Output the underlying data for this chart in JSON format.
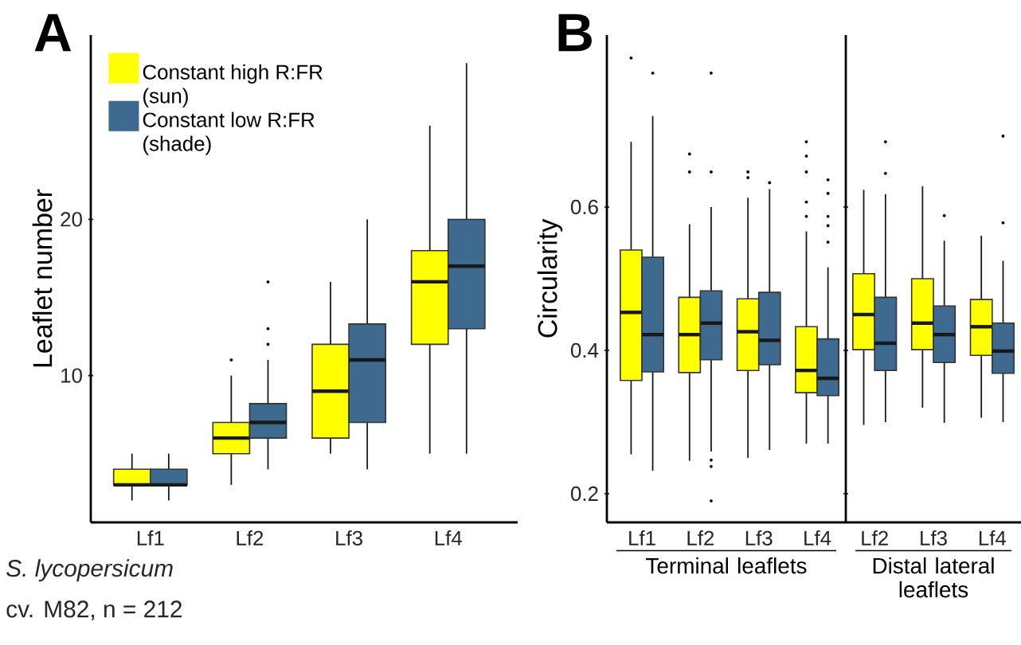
{
  "chart_data": [
    {
      "type": "box",
      "title": "A",
      "ylabel": "Leaflet number",
      "categories": [
        "Lf1",
        "Lf2",
        "Lf3",
        "Lf4"
      ],
      "ylim": [
        0.6,
        31.8
      ],
      "yticks": [
        10,
        20
      ],
      "legend": "top left",
      "annotations": [
        "S. lycopersicum",
        "cv. M82, n = 212"
      ],
      "series": [
        {
          "name": "Constant high R:FR (sun)",
          "color": "#ffff00",
          "boxes": [
            {
              "low": 2,
              "q1": 3,
              "median": 3,
              "q3": 4,
              "high": 5
            },
            {
              "low": 3,
              "q1": 5,
              "median": 6,
              "q3": 7,
              "high": 10,
              "outliers": [
                11
              ]
            },
            {
              "low": 5,
              "q1": 6,
              "median": 9,
              "q3": 12,
              "high": 16
            },
            {
              "low": 5,
              "q1": 12,
              "median": 16,
              "q3": 18,
              "high": 26
            }
          ]
        },
        {
          "name": "Constant low R:FR (shade)",
          "color": "#3d6a8e",
          "boxes": [
            {
              "low": 2,
              "q1": 3,
              "median": 3,
              "q3": 4,
              "high": 5
            },
            {
              "low": 4,
              "q1": 6,
              "median": 7,
              "q3": 8.2,
              "high": 11,
              "outliers": [
                12,
                13,
                16
              ]
            },
            {
              "low": 4,
              "q1": 7,
              "median": 11,
              "q3": 13.3,
              "high": 20
            },
            {
              "low": 5,
              "q1": 13,
              "median": 17,
              "q3": 20,
              "high": 30
            }
          ]
        }
      ]
    },
    {
      "type": "box",
      "title": "B",
      "ylabel": "Circularity",
      "xlabel": "Terminal leaflets",
      "categories": [
        "Lf1",
        "Lf2",
        "Lf3",
        "Lf4"
      ],
      "ylim": [
        0.16,
        0.84
      ],
      "yticks": [
        0.2,
        0.4,
        0.6
      ],
      "series": [
        {
          "color": "#ffff00",
          "boxes": [
            {
              "low": 0.255,
              "q1": 0.358,
              "median": 0.453,
              "q3": 0.54,
              "high": 0.691,
              "outliers": [
                0.808
              ]
            },
            {
              "low": 0.246,
              "q1": 0.369,
              "median": 0.422,
              "q3": 0.474,
              "high": 0.576,
              "outliers": [
                0.649,
                0.674
              ]
            },
            {
              "low": 0.25,
              "q1": 0.372,
              "median": 0.426,
              "q3": 0.472,
              "high": 0.613,
              "outliers": [
                0.641,
                0.649
              ]
            },
            {
              "low": 0.27,
              "q1": 0.341,
              "median": 0.372,
              "q3": 0.433,
              "high": 0.566,
              "outliers": [
                0.587,
                0.607,
                0.649,
                0.671,
                0.691
              ]
            }
          ]
        },
        {
          "color": "#3d6a8e",
          "boxes": [
            {
              "low": 0.232,
              "q1": 0.37,
              "median": 0.422,
              "q3": 0.53,
              "high": 0.727,
              "outliers": [
                0.787
              ]
            },
            {
              "low": 0.259,
              "q1": 0.387,
              "median": 0.438,
              "q3": 0.483,
              "high": 0.6,
              "outliers": [
                0.19,
                0.238,
                0.247,
                0.649,
                0.787
              ]
            },
            {
              "low": 0.261,
              "q1": 0.38,
              "median": 0.414,
              "q3": 0.481,
              "high": 0.625,
              "outliers": [
                0.634
              ]
            },
            {
              "low": 0.27,
              "q1": 0.337,
              "median": 0.361,
              "q3": 0.416,
              "high": 0.516,
              "outliers": [
                0.551,
                0.574,
                0.587,
                0.619,
                0.638
              ]
            }
          ]
        }
      ]
    },
    {
      "type": "box",
      "xlabel": "Distal lateral leaflets",
      "categories": [
        "Lf2",
        "Lf3",
        "Lf4"
      ],
      "ylim": [
        0.16,
        0.84
      ],
      "yticks": [
        0.2,
        0.4,
        0.6
      ],
      "tick_labels": "x",
      "series": [
        {
          "color": "#ffff00",
          "boxes": [
            {
              "low": 0.296,
              "q1": 0.401,
              "median": 0.45,
              "q3": 0.507,
              "high": 0.624
            },
            {
              "low": 0.32,
              "q1": 0.401,
              "median": 0.438,
              "q3": 0.5,
              "high": 0.629
            },
            {
              "low": 0.306,
              "q1": 0.393,
              "median": 0.433,
              "q3": 0.471,
              "high": 0.56
            }
          ]
        },
        {
          "color": "#3d6a8e",
          "boxes": [
            {
              "low": 0.3,
              "q1": 0.372,
              "median": 0.41,
              "q3": 0.474,
              "high": 0.618,
              "outliers": [
                0.647,
                0.691
              ]
            },
            {
              "low": 0.299,
              "q1": 0.383,
              "median": 0.422,
              "q3": 0.462,
              "high": 0.553,
              "outliers": [
                0.588
              ]
            },
            {
              "low": 0.3,
              "q1": 0.368,
              "median": 0.399,
              "q3": 0.438,
              "high": 0.525,
              "outliers": [
                0.578,
                0.699
              ]
            }
          ]
        }
      ]
    }
  ]
}
